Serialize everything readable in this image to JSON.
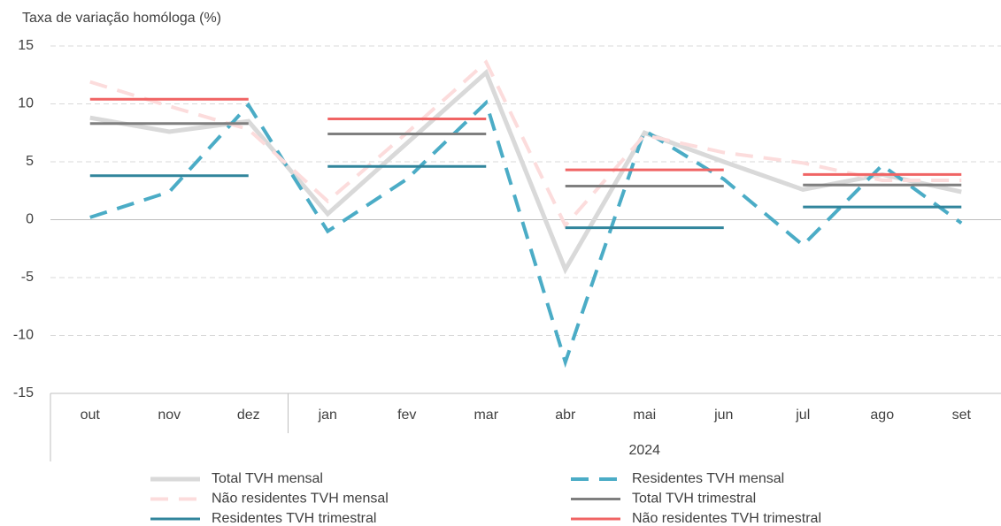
{
  "chart_data": {
    "type": "line",
    "y_axis_label": "Taxa de variação homóloga (%)",
    "categories": [
      "out",
      "nov",
      "dez",
      "jan",
      "fev",
      "mar",
      "abr",
      "mai",
      "jun",
      "jul",
      "ago",
      "set"
    ],
    "x_group_label": "2024",
    "ylim": [
      -15,
      15
    ],
    "yticks": [
      15,
      10,
      5,
      0,
      -5,
      -10,
      -15
    ],
    "grid": true,
    "series": [
      {
        "name": "Total TVH mensal",
        "color": "#d9d9d9",
        "style": "solid",
        "width": 5,
        "values": [
          8.8,
          7.6,
          8.5,
          0.5,
          6.6,
          12.7,
          -4.3,
          7.5,
          5.0,
          2.6,
          3.9,
          2.4
        ]
      },
      {
        "name": "Residentes TVH mensal",
        "color": "#4bacc6",
        "style": "dashed",
        "width": 4,
        "values": [
          0.2,
          2.4,
          9.9,
          -1.0,
          3.5,
          10.1,
          -12.3,
          7.7,
          3.5,
          -2.2,
          4.7,
          -0.3
        ]
      },
      {
        "name": "Não residentes TVH mensal",
        "color": "#fcdcdc",
        "style": "dashed",
        "width": 4,
        "values": [
          11.9,
          9.8,
          7.8,
          1.6,
          7.5,
          13.6,
          -0.5,
          7.3,
          5.8,
          4.9,
          3.4,
          3.4
        ]
      },
      {
        "name": "Total TVH trimestral",
        "color": "#7f7f7f",
        "style": "quarterly",
        "width": 3,
        "values": [
          8.3,
          8.3,
          8.3,
          7.4,
          7.4,
          7.4,
          2.9,
          2.9,
          2.9,
          3.0,
          3.0,
          3.0
        ]
      },
      {
        "name": "Residentes TVH trimestral",
        "color": "#31859c",
        "style": "quarterly",
        "width": 3,
        "values": [
          3.8,
          3.8,
          3.8,
          4.6,
          4.6,
          4.6,
          -0.7,
          -0.7,
          -0.7,
          1.1,
          1.1,
          1.1
        ]
      },
      {
        "name": "Não residentes TVH trimestral",
        "color": "#f06464",
        "style": "quarterly",
        "width": 3,
        "values": [
          10.4,
          10.4,
          10.4,
          8.7,
          8.7,
          8.7,
          4.3,
          4.3,
          4.3,
          3.9,
          3.9,
          3.9
        ]
      }
    ]
  }
}
